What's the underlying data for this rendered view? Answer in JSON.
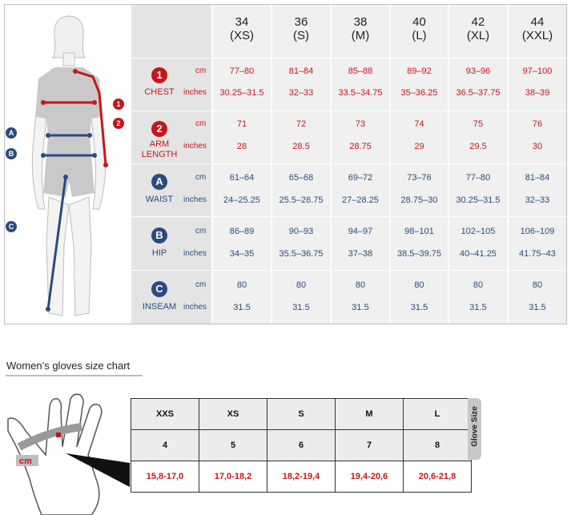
{
  "size_chart": {
    "sizes": [
      {
        "num": "34",
        "code": "(XS)"
      },
      {
        "num": "36",
        "code": "(S)"
      },
      {
        "num": "38",
        "code": "(M)"
      },
      {
        "num": "40",
        "code": "(L)"
      },
      {
        "num": "42",
        "code": "(XL)"
      },
      {
        "num": "44",
        "code": "(XXL)"
      }
    ],
    "unit_cm": "cm",
    "unit_inches": "inches",
    "rows": [
      {
        "badge": "1",
        "name": "CHEST",
        "color": "#c4161c",
        "cm": [
          "77–80",
          "81–84",
          "85–88",
          "89–92",
          "93–96",
          "97–100"
        ],
        "inches": [
          "30.25–31.5",
          "32–33",
          "33.5–34.75",
          "35–36.25",
          "36.5–37.75",
          "38–39"
        ]
      },
      {
        "badge": "2",
        "name": "ARM LENGTH",
        "name_line1": "ARM",
        "name_line2": "LENGTH",
        "color": "#c4161c",
        "cm": [
          "71",
          "72",
          "73",
          "74",
          "75",
          "76"
        ],
        "inches": [
          "28",
          "28.5",
          "28.75",
          "29",
          "29.5",
          "30"
        ]
      },
      {
        "badge": "A",
        "name": "WAIST",
        "color": "#2b4b7e",
        "cm": [
          "61–64",
          "65–68",
          "69–72",
          "73–76",
          "77–80",
          "81–84"
        ],
        "inches": [
          "24–25.25",
          "25.5–26.75",
          "27–28.25",
          "28.75–30",
          "30.25–31.5",
          "32–33"
        ]
      },
      {
        "badge": "B",
        "name": "HIP",
        "color": "#2b4b7e",
        "cm": [
          "86–89",
          "90–93",
          "94–97",
          "98–101",
          "102–105",
          "106–109"
        ],
        "inches": [
          "34–35",
          "35.5–36.75",
          "37–38",
          "38.5–39.75",
          "40–41.25",
          "41.75–43"
        ]
      },
      {
        "badge": "C",
        "name": "INSEAM",
        "color": "#2b4b7e",
        "cm": [
          "80",
          "80",
          "80",
          "80",
          "80",
          "80"
        ],
        "inches": [
          "31.5",
          "31.5",
          "31.5",
          "31.5",
          "31.5",
          "31.5"
        ]
      }
    ],
    "figure_markers": {
      "one": "1",
      "two": "2",
      "a": "A",
      "b": "B",
      "c": "C"
    }
  },
  "gloves": {
    "title": "Women’s gloves size chart",
    "hand_unit": "cm",
    "side_label": "Glove Size",
    "sizes": [
      "XXS",
      "XS",
      "S",
      "M",
      "L"
    ],
    "numbers": [
      "4",
      "5",
      "6",
      "7",
      "8"
    ],
    "ranges": [
      "15,8-17,0",
      "17,0-18,2",
      "18,2-19,4",
      "19,4-20,6",
      "20,6-21,8"
    ]
  }
}
